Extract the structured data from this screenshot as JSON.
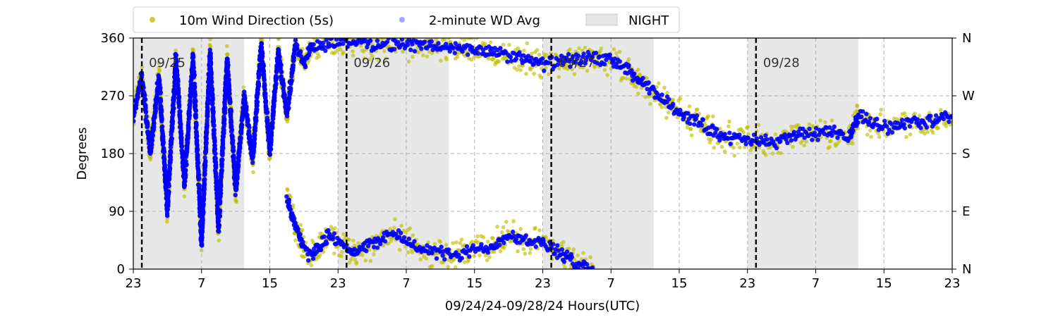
{
  "chart_data": {
    "type": "scatter",
    "title": "",
    "xlabel": "09/24/24-09/28/24  Hours(UTC)",
    "ylabel": "Degrees",
    "x_start": "2024-09-24 23:00",
    "x_end": "2024-09-28 23:00",
    "x_unit": "hour (UTC)",
    "ylim": [
      0,
      360
    ],
    "x_ticks": [
      "23",
      "7",
      "15",
      "23",
      "7",
      "15",
      "23",
      "7",
      "15",
      "23",
      "7",
      "15",
      "23"
    ],
    "y_ticks": [
      "0",
      "90",
      "180",
      "270",
      "360"
    ],
    "y2_ticks": [
      "N",
      "E",
      "S",
      "W",
      "N"
    ],
    "grid": true,
    "legend_position": "top-left, above plot",
    "legend": [
      {
        "label": "10m Wind Direction (5s)",
        "color": "#bfbf00",
        "marker": "dot"
      },
      {
        "label": "2-minute WD Avg",
        "color": "#0000ff",
        "marker": "dot"
      },
      {
        "label": "NIGHT",
        "color": "#e6e6e6",
        "marker": "patch"
      }
    ],
    "night_shading": [
      {
        "start": "2024-09-24 23:00",
        "end": "2024-09-25 12:00"
      },
      {
        "start": "2024-09-25 23:00",
        "end": "2024-09-26 12:00"
      },
      {
        "start": "2024-09-26 23:00",
        "end": "2024-09-27 12:00"
      },
      {
        "start": "2024-09-27 23:00",
        "end": "2024-09-28 12:00"
      }
    ],
    "day_markers": [
      {
        "label": "09/25",
        "time": "2024-09-25 00:00"
      },
      {
        "label": "09/26",
        "time": "2024-09-26 00:00"
      },
      {
        "label": "09/27",
        "time": "2024-09-27 00:00"
      },
      {
        "label": "09/28",
        "time": "2024-09-28 00:00"
      }
    ],
    "series": [
      {
        "name": "10m Wind Direction (5s)",
        "color": "#bfbf00",
        "spread": 28,
        "segments": [
          [
            [
              "2024-09-24 23:00",
              240
            ],
            [
              "2024-09-25 00:00",
              300
            ],
            [
              "2024-09-25 01:00",
              180
            ],
            [
              "2024-09-25 02:00",
              300
            ],
            [
              "2024-09-25 03:00",
              90
            ],
            [
              "2024-09-25 04:00",
              330
            ],
            [
              "2024-09-25 05:00",
              130
            ],
            [
              "2024-09-25 06:00",
              330
            ],
            [
              "2024-09-25 07:00",
              40
            ],
            [
              "2024-09-25 08:00",
              340
            ],
            [
              "2024-09-25 09:00",
              60
            ],
            [
              "2024-09-25 10:00",
              330
            ],
            [
              "2024-09-25 11:00",
              120
            ],
            [
              "2024-09-25 12:00",
              270
            ],
            [
              "2024-09-25 13:00",
              170
            ],
            [
              "2024-09-25 14:00",
              350
            ],
            [
              "2024-09-25 15:00",
              180
            ],
            [
              "2024-09-25 16:00",
              340
            ],
            [
              "2024-09-25 17:00",
              240
            ],
            [
              "2024-09-25 18:00",
              350
            ],
            [
              "2024-09-25 19:00",
              320
            ],
            [
              "2024-09-25 20:00",
              350
            ]
          ],
          [
            [
              "2024-09-25 17:00",
              110
            ],
            [
              "2024-09-25 18:00",
              70
            ],
            [
              "2024-09-25 19:00",
              30
            ],
            [
              "2024-09-25 20:00",
              20
            ],
            [
              "2024-09-25 21:00",
              40
            ],
            [
              "2024-09-25 22:00",
              55
            ],
            [
              "2024-09-25 23:00",
              45
            ],
            [
              "2024-09-26 01:00",
              25
            ],
            [
              "2024-09-26 03:00",
              40
            ],
            [
              "2024-09-26 05:00",
              55
            ],
            [
              "2024-09-26 07:00",
              45
            ],
            [
              "2024-09-26 09:00",
              30
            ],
            [
              "2024-09-26 11:00",
              25
            ],
            [
              "2024-09-26 13:00",
              20
            ],
            [
              "2024-09-26 15:00",
              30
            ],
            [
              "2024-09-26 17:00",
              35
            ],
            [
              "2024-09-26 19:00",
              55
            ],
            [
              "2024-09-26 21:00",
              45
            ],
            [
              "2024-09-26 23:00",
              40
            ],
            [
              "2024-09-27 01:00",
              25
            ],
            [
              "2024-09-27 03:00",
              8
            ],
            [
              "2024-09-27 05:00",
              2
            ]
          ],
          [
            [
              "2024-09-25 20:00",
              345
            ],
            [
              "2024-09-25 22:00",
              352
            ],
            [
              "2024-09-26 00:00",
              355
            ],
            [
              "2024-09-26 04:00",
              350
            ],
            [
              "2024-09-26 08:00",
              350
            ],
            [
              "2024-09-26 12:00",
              345
            ],
            [
              "2024-09-26 16:00",
              340
            ],
            [
              "2024-09-26 20:00",
              330
            ],
            [
              "2024-09-26 23:00",
              320
            ],
            [
              "2024-09-27 02:00",
              325
            ],
            [
              "2024-09-27 05:00",
              330
            ],
            [
              "2024-09-27 07:00",
              325
            ],
            [
              "2024-09-27 09:00",
              310
            ],
            [
              "2024-09-27 11:00",
              285
            ],
            [
              "2024-09-27 13:00",
              265
            ],
            [
              "2024-09-27 15:00",
              245
            ],
            [
              "2024-09-27 17:00",
              230
            ],
            [
              "2024-09-27 19:00",
              215
            ],
            [
              "2024-09-27 21:00",
              205
            ],
            [
              "2024-09-27 23:00",
              200
            ],
            [
              "2024-09-28 02:00",
              198
            ],
            [
              "2024-09-28 05:00",
              210
            ],
            [
              "2024-09-28 08:00",
              212
            ],
            [
              "2024-09-28 11:00",
              208
            ],
            [
              "2024-09-28 12:00",
              240
            ],
            [
              "2024-09-28 14:00",
              225
            ],
            [
              "2024-09-28 16:00",
              222
            ],
            [
              "2024-09-28 18:00",
              232
            ],
            [
              "2024-09-28 20:00",
              228
            ],
            [
              "2024-09-28 22:00",
              236
            ],
            [
              "2024-09-28 23:00",
              232
            ]
          ]
        ]
      },
      {
        "name": "2-minute WD Avg",
        "color": "#0000ff",
        "spread": 12,
        "segments": [
          [
            [
              "2024-09-24 23:00",
              240
            ],
            [
              "2024-09-25 00:00",
              300
            ],
            [
              "2024-09-25 01:00",
              180
            ],
            [
              "2024-09-25 02:00",
              300
            ],
            [
              "2024-09-25 03:00",
              90
            ],
            [
              "2024-09-25 04:00",
              330
            ],
            [
              "2024-09-25 05:00",
              130
            ],
            [
              "2024-09-25 06:00",
              330
            ],
            [
              "2024-09-25 07:00",
              40
            ],
            [
              "2024-09-25 08:00",
              340
            ],
            [
              "2024-09-25 09:00",
              60
            ],
            [
              "2024-09-25 10:00",
              330
            ],
            [
              "2024-09-25 11:00",
              120
            ],
            [
              "2024-09-25 12:00",
              270
            ],
            [
              "2024-09-25 13:00",
              170
            ],
            [
              "2024-09-25 14:00",
              350
            ],
            [
              "2024-09-25 15:00",
              180
            ],
            [
              "2024-09-25 16:00",
              340
            ],
            [
              "2024-09-25 17:00",
              240
            ],
            [
              "2024-09-25 18:00",
              350
            ],
            [
              "2024-09-25 19:00",
              320
            ],
            [
              "2024-09-25 20:00",
              350
            ]
          ],
          [
            [
              "2024-09-25 17:00",
              110
            ],
            [
              "2024-09-25 18:00",
              70
            ],
            [
              "2024-09-25 19:00",
              30
            ],
            [
              "2024-09-25 20:00",
              20
            ],
            [
              "2024-09-25 21:00",
              40
            ],
            [
              "2024-09-25 22:00",
              55
            ],
            [
              "2024-09-25 23:00",
              45
            ],
            [
              "2024-09-26 01:00",
              25
            ],
            [
              "2024-09-26 03:00",
              40
            ],
            [
              "2024-09-26 05:00",
              55
            ],
            [
              "2024-09-26 07:00",
              45
            ],
            [
              "2024-09-26 09:00",
              30
            ],
            [
              "2024-09-26 11:00",
              25
            ],
            [
              "2024-09-26 13:00",
              20
            ],
            [
              "2024-09-26 15:00",
              30
            ],
            [
              "2024-09-26 17:00",
              35
            ],
            [
              "2024-09-26 19:00",
              55
            ],
            [
              "2024-09-26 21:00",
              45
            ],
            [
              "2024-09-26 23:00",
              40
            ],
            [
              "2024-09-27 01:00",
              25
            ],
            [
              "2024-09-27 03:00",
              8
            ],
            [
              "2024-09-27 05:00",
              2
            ]
          ],
          [
            [
              "2024-09-25 20:00",
              345
            ],
            [
              "2024-09-25 22:00",
              352
            ],
            [
              "2024-09-26 00:00",
              355
            ],
            [
              "2024-09-26 04:00",
              350
            ],
            [
              "2024-09-26 08:00",
              350
            ],
            [
              "2024-09-26 12:00",
              345
            ],
            [
              "2024-09-26 16:00",
              340
            ],
            [
              "2024-09-26 20:00",
              330
            ],
            [
              "2024-09-26 23:00",
              320
            ],
            [
              "2024-09-27 02:00",
              325
            ],
            [
              "2024-09-27 05:00",
              330
            ],
            [
              "2024-09-27 07:00",
              325
            ],
            [
              "2024-09-27 09:00",
              310
            ],
            [
              "2024-09-27 11:00",
              285
            ],
            [
              "2024-09-27 13:00",
              265
            ],
            [
              "2024-09-27 15:00",
              245
            ],
            [
              "2024-09-27 17:00",
              230
            ],
            [
              "2024-09-27 19:00",
              215
            ],
            [
              "2024-09-27 21:00",
              205
            ],
            [
              "2024-09-27 23:00",
              200
            ],
            [
              "2024-09-28 02:00",
              198
            ],
            [
              "2024-09-28 05:00",
              210
            ],
            [
              "2024-09-28 08:00",
              212
            ],
            [
              "2024-09-28 11:00",
              208
            ],
            [
              "2024-09-28 12:00",
              240
            ],
            [
              "2024-09-28 14:00",
              225
            ],
            [
              "2024-09-28 16:00",
              222
            ],
            [
              "2024-09-28 18:00",
              232
            ],
            [
              "2024-09-28 20:00",
              228
            ],
            [
              "2024-09-28 22:00",
              236
            ],
            [
              "2024-09-28 23:00",
              232
            ]
          ]
        ]
      }
    ]
  }
}
